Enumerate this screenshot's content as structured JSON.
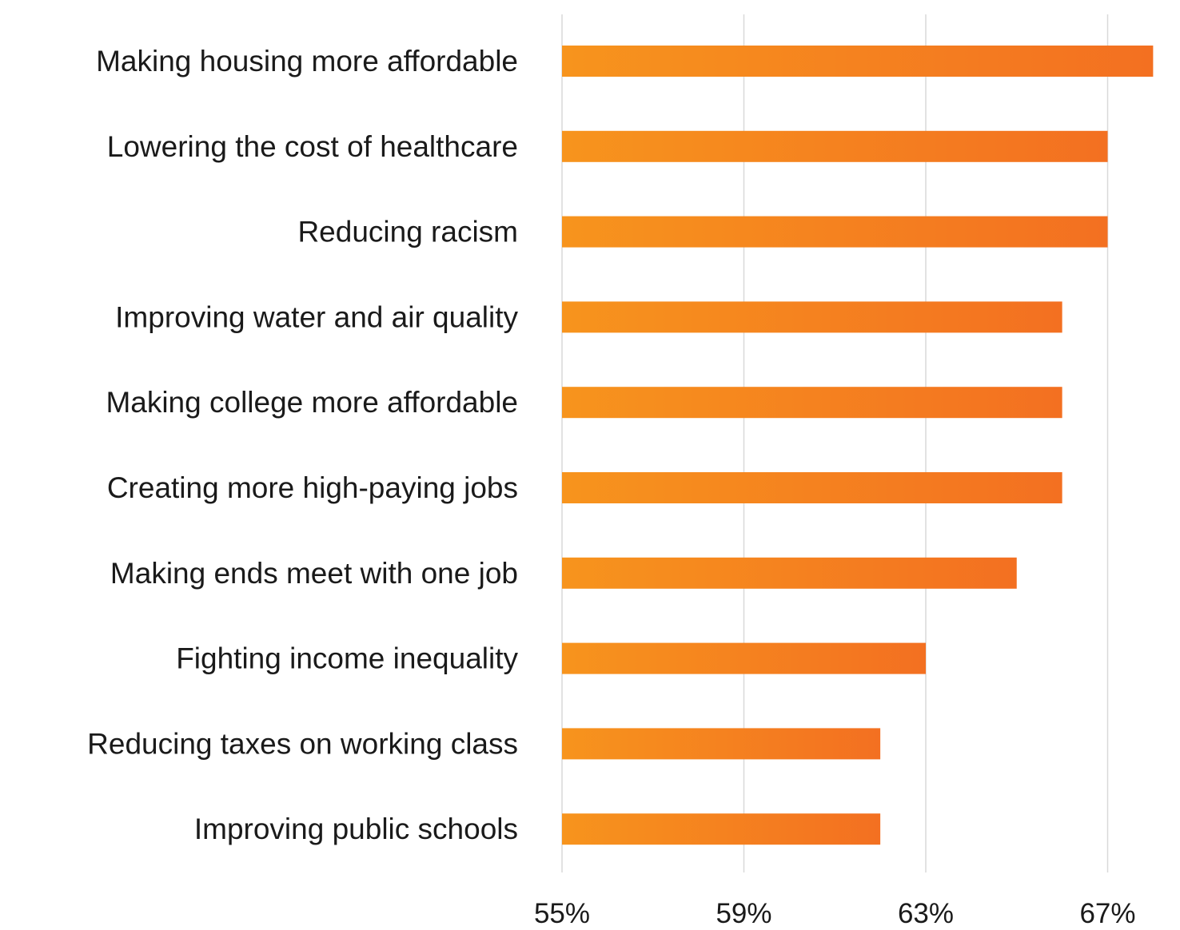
{
  "chart_data": {
    "type": "bar",
    "orientation": "horizontal",
    "categories": [
      "Making housing more affordable",
      "Lowering the cost of healthcare",
      "Reducing racism",
      "Improving water and air quality",
      "Making college more affordable",
      "Creating more high-paying jobs",
      "Making ends meet with one job",
      "Fighting income inequality",
      "Reducing taxes on working class",
      "Improving public schools"
    ],
    "values": [
      68,
      67,
      67,
      66,
      66,
      66,
      65,
      63,
      62,
      62
    ],
    "xlim": [
      55,
      68
    ],
    "x_ticks": [
      55,
      59,
      63,
      67
    ],
    "x_tick_labels": [
      "55%",
      "59%",
      "63%",
      "67%"
    ],
    "title": "",
    "xlabel": "",
    "ylabel": "",
    "grid": "vertical",
    "legend": "none",
    "colors": {
      "bar_start": "#F7941D",
      "bar_end": "#F37021",
      "grid": "#d9d9d9",
      "text": "#1a1a1a"
    }
  }
}
